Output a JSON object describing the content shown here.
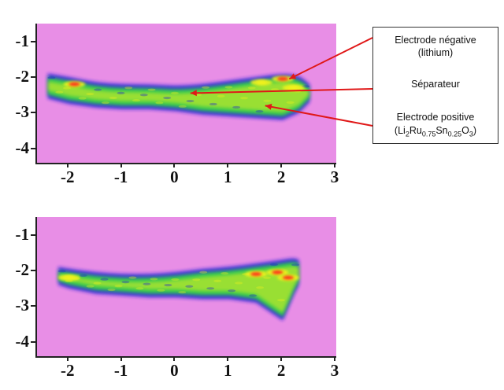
{
  "chart_data": [
    {
      "type": "heatmap",
      "title": "",
      "xlabel": "",
      "ylabel": "",
      "xlim": [
        -2.6,
        3
      ],
      "ylim": [
        -4.4,
        -0.5
      ],
      "x_ticks": [
        "-2",
        "-1",
        "0",
        "1",
        "2",
        "3"
      ],
      "y_ticks": [
        "-1",
        "-2",
        "-3",
        "-4"
      ],
      "grid": false,
      "background_color": "#e88ee6",
      "colormap": [
        "#1a1ad8",
        "#2ed14a",
        "#f2f21e",
        "#ff2a1a"
      ],
      "band": {
        "x": [
          -2.4,
          -2.0,
          -1.5,
          -1.0,
          -0.5,
          0.0,
          0.5,
          1.0,
          1.5,
          2.0,
          2.3,
          2.5
        ],
        "top": [
          -2.0,
          -2.1,
          -2.25,
          -2.3,
          -2.3,
          -2.35,
          -2.3,
          -2.2,
          -2.1,
          -2.0,
          -2.05,
          -2.3
        ],
        "bottom": [
          -2.5,
          -2.65,
          -2.75,
          -2.8,
          -2.8,
          -2.85,
          -2.95,
          -3.0,
          -3.05,
          -3.1,
          -2.9,
          -2.6
        ]
      },
      "hotspots": [
        {
          "x": -1.9,
          "y": -2.2,
          "level": "red"
        },
        {
          "x": 1.6,
          "y": -2.15,
          "level": "yellow"
        },
        {
          "x": 2.0,
          "y": -2.05,
          "level": "red"
        },
        {
          "x": 2.2,
          "y": -2.3,
          "level": "yellow"
        }
      ],
      "annotations": [
        {
          "label": "Electrode négative (lithium)",
          "x": 2.15,
          "y": -2.05
        },
        {
          "label": "Séparateur",
          "x": 0.3,
          "y": -2.45
        },
        {
          "label": "Electrode positive (Li2Ru0.75Sn0.25O3)",
          "x": 1.7,
          "y": -2.8
        }
      ]
    },
    {
      "type": "heatmap",
      "title": "",
      "xlabel": "",
      "ylabel": "",
      "xlim": [
        -2.6,
        3
      ],
      "ylim": [
        -4.4,
        -0.5
      ],
      "x_ticks": [
        "-2",
        "-1",
        "0",
        "1",
        "2",
        "3"
      ],
      "y_ticks": [
        "-1",
        "-2",
        "-3",
        "-4"
      ],
      "grid": false,
      "background_color": "#e88ee6",
      "colormap": [
        "#1a1ad8",
        "#2ed14a",
        "#f2f21e",
        "#ff2a1a"
      ],
      "band": {
        "x": [
          -2.2,
          -2.0,
          -1.5,
          -1.0,
          -0.5,
          0.0,
          0.5,
          1.0,
          1.5,
          2.0,
          2.2,
          2.3
        ],
        "top": [
          -2.0,
          -2.05,
          -2.15,
          -2.2,
          -2.2,
          -2.15,
          -2.05,
          -2.0,
          -1.9,
          -1.8,
          -1.75,
          -1.8
        ],
        "bottom": [
          -2.3,
          -2.4,
          -2.55,
          -2.6,
          -2.65,
          -2.65,
          -2.7,
          -2.7,
          -2.8,
          -3.3,
          -2.6,
          -2.3
        ]
      },
      "hotspots": [
        {
          "x": -2.0,
          "y": -2.2,
          "level": "yellow"
        },
        {
          "x": 1.5,
          "y": -2.1,
          "level": "red"
        },
        {
          "x": 1.9,
          "y": -2.05,
          "level": "red"
        },
        {
          "x": 2.1,
          "y": -2.2,
          "level": "red"
        }
      ]
    }
  ],
  "legend": {
    "negative_line1": "Electrode négative",
    "negative_line2": "(lithium)",
    "separator": "Séparateur",
    "positive_line1": "Electrode positive",
    "positive_formula": {
      "a": "(Li",
      "s1": "2",
      "b": "Ru",
      "s2": "0.75",
      "c": "Sn",
      "s3": "0.25",
      "d": "O",
      "s4": "3",
      "e": ")"
    }
  },
  "arrow_color": "#e01818"
}
